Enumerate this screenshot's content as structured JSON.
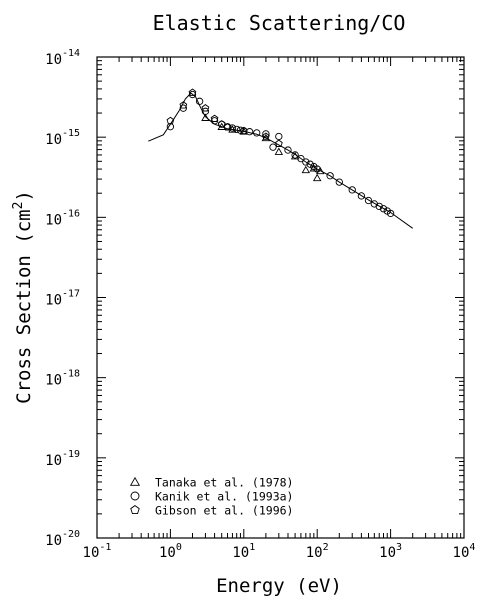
{
  "chart_data": {
    "type": "scatter",
    "title": "Elastic Scattering/CO",
    "xlabel": "Energy (eV)",
    "ylabel": "Cross Section (cm2)",
    "ylabel_base": "Cross Section (cm",
    "ylabel_sup": "2",
    "ylabel_close": ")",
    "x_scale": "log",
    "y_scale": "log",
    "xlim": [
      0.1,
      10000
    ],
    "ylim": [
      1e-20,
      1e-14
    ],
    "x_ticks": [
      {
        "value": 0.1,
        "base": "10",
        "exp": "-1"
      },
      {
        "value": 1,
        "base": "10",
        "exp": "0"
      },
      {
        "value": 10,
        "base": "10",
        "exp": "1"
      },
      {
        "value": 100,
        "base": "10",
        "exp": "2"
      },
      {
        "value": 1000,
        "base": "10",
        "exp": "3"
      },
      {
        "value": 10000,
        "base": "10",
        "exp": "4"
      }
    ],
    "y_ticks": [
      {
        "value": 1e-20,
        "base": "10",
        "exp": "-20"
      },
      {
        "value": 1e-19,
        "base": "10",
        "exp": "-19"
      },
      {
        "value": 1e-18,
        "base": "10",
        "exp": "-18"
      },
      {
        "value": 1e-17,
        "base": "10",
        "exp": "-17"
      },
      {
        "value": 1e-16,
        "base": "10",
        "exp": "-16"
      },
      {
        "value": 1e-15,
        "base": "10",
        "exp": "-15"
      },
      {
        "value": 1e-14,
        "base": "10",
        "exp": "-14"
      }
    ],
    "grid": false,
    "legend_position": "bottom-left",
    "recommended_curve": {
      "x": [
        0.5,
        0.8,
        1.0,
        1.3,
        1.6,
        1.9,
        2.2,
        2.6,
        3.0,
        3.5,
        4.0,
        5.0,
        6.0,
        8.0,
        10,
        15,
        20,
        30,
        40,
        50,
        70,
        100,
        150,
        200,
        300,
        500,
        700,
        1000,
        2000
      ],
      "y": [
        8.9e-16,
        1.07e-15,
        1.45e-15,
        2.1e-15,
        3e-15,
        3.55e-15,
        3.2e-15,
        2.3e-15,
        1.8e-15,
        1.6e-15,
        1.45e-15,
        1.35e-15,
        1.27e-15,
        1.22e-15,
        1.18e-15,
        1.09e-15,
        9.8e-16,
        8e-16,
        6.9e-16,
        6.1e-16,
        4.9e-16,
        4e-16,
        3.3e-16,
        2.75e-16,
        2.2e-16,
        1.65e-16,
        1.38e-16,
        1.15e-16,
        7.3e-17
      ]
    },
    "series": [
      {
        "name": "Tanaka et al. (1978)",
        "marker": "triangle",
        "x": [
          3.0,
          5.0,
          7.0,
          10,
          20,
          30,
          50,
          70,
          90,
          100,
          110
        ],
        "y": [
          1.75e-15,
          1.35e-15,
          1.25e-15,
          1.18e-15,
          9.8e-16,
          6.6e-16,
          5.8e-16,
          3.9e-16,
          4.1e-16,
          3.1e-16,
          3.8e-16
        ]
      },
      {
        "name": "Kanik et al. (1993a)",
        "marker": "circle",
        "x": [
          1.0,
          1.5,
          2.0,
          2.5,
          3.0,
          4.0,
          5.0,
          6.0,
          7.0,
          8.0,
          9.0,
          10,
          12,
          15,
          20,
          25,
          30,
          40,
          50,
          60,
          70,
          80,
          90,
          100,
          150,
          200,
          300,
          400,
          500,
          600,
          700,
          800,
          900,
          1000
        ],
        "y": [
          1.35e-15,
          2.3e-15,
          3.4e-15,
          2.8e-15,
          2.1e-15,
          1.6e-15,
          1.45e-15,
          1.35e-15,
          1.3e-15,
          1.25e-15,
          1.22e-15,
          1.2e-15,
          1.17e-15,
          1.13e-15,
          1.1e-15,
          7.5e-16,
          1.02e-15,
          6.9e-16,
          6e-16,
          5.4e-16,
          4.9e-16,
          4.6e-16,
          4.3e-16,
          4e-16,
          3.3e-16,
          2.75e-16,
          2.2e-16,
          1.85e-16,
          1.62e-16,
          1.47e-16,
          1.37e-16,
          1.28e-16,
          1.2e-16,
          1.12e-16
        ]
      },
      {
        "name": "Gibson et al. (1996)",
        "marker": "pentagon",
        "x": [
          1.0,
          1.5,
          2.0,
          3.0,
          4.0,
          5.0,
          6.0,
          10,
          20,
          30
        ],
        "y": [
          1.6e-15,
          2.5e-15,
          3.6e-15,
          2.3e-15,
          1.7e-15,
          1.45e-15,
          1.33e-15,
          1.2e-15,
          1.02e-15,
          8.3e-16
        ]
      }
    ]
  }
}
